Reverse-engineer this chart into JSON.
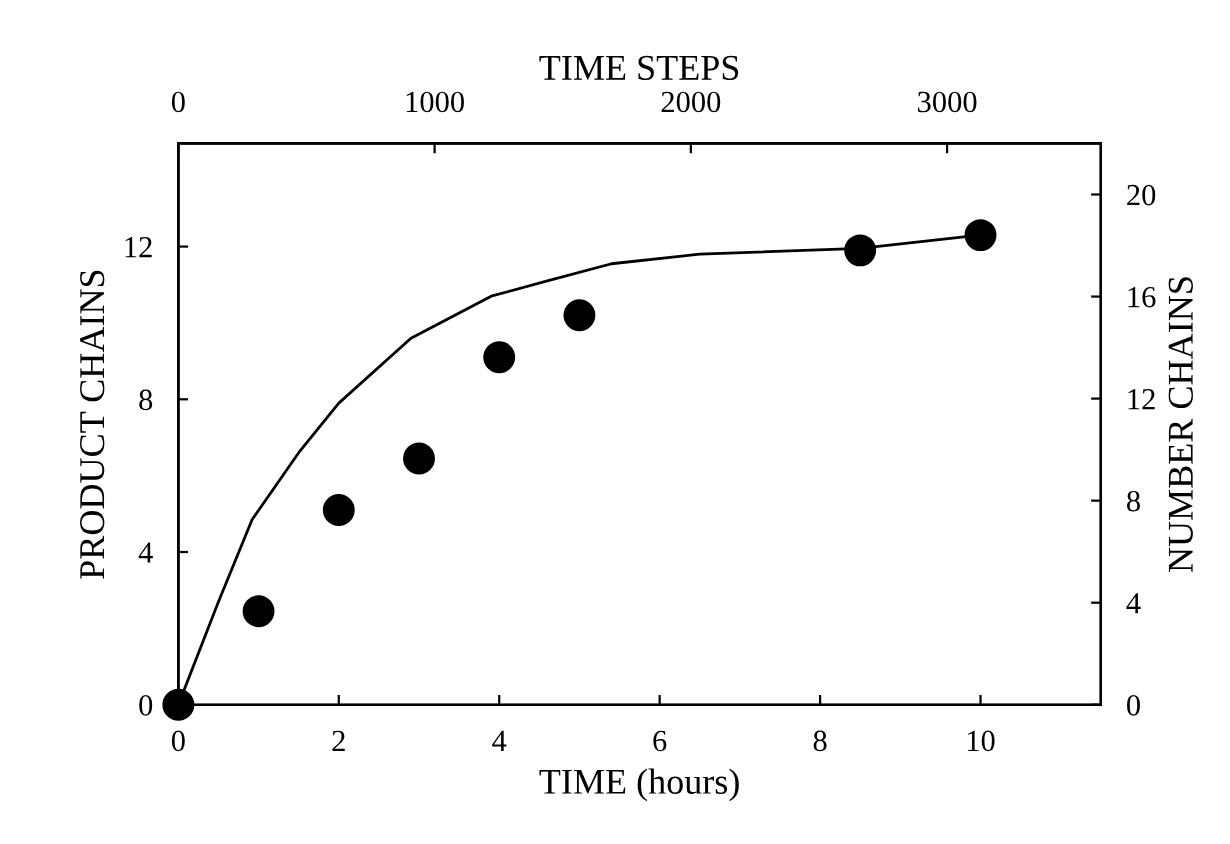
{
  "chart_data": {
    "type": "scatter",
    "xlabel": "TIME (hours)",
    "ylabel": "PRODUCT CHAINS",
    "y2label": "NUMBER CHAINS",
    "x2label": "TIME STEPS",
    "xlim": [
      0,
      11.5
    ],
    "xticks": [
      0,
      2,
      4,
      6,
      8,
      10
    ],
    "ylim": [
      0,
      14.7
    ],
    "yticks": [
      0,
      4,
      8,
      12
    ],
    "x2lim": [
      0,
      3600
    ],
    "x2ticks": [
      0,
      1000,
      2000,
      3000
    ],
    "y2lim": [
      0,
      22
    ],
    "y2ticks": [
      0,
      4,
      8,
      12,
      16,
      20
    ],
    "grid": false,
    "legend": false,
    "series": [
      {
        "type": "line",
        "color": "#000000",
        "marker": "none",
        "line_style": "solid",
        "x": [
          0,
          0.5,
          0.92,
          1.5,
          2.0,
          2.9,
          3.9,
          4.6,
          5.4,
          6.5,
          8.5,
          10
        ],
        "values": [
          0,
          2.7,
          4.85,
          6.6,
          7.9,
          9.6,
          10.7,
          11.1,
          11.55,
          11.8,
          11.95,
          12.3
        ]
      },
      {
        "color": "#000000",
        "marker": "circle",
        "x": [
          0,
          1,
          2,
          3,
          4,
          5,
          8.5,
          10
        ],
        "values": [
          0,
          2.45,
          5.1,
          6.45,
          9.1,
          10.2,
          11.9,
          12.3
        ]
      }
    ]
  }
}
